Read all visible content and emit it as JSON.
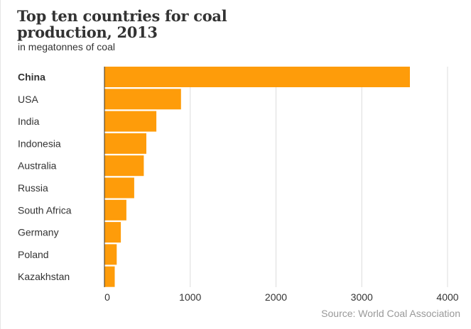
{
  "header": {
    "title": "Top ten countries for coal production, 2013",
    "subtitle": "in megatonnes of coal"
  },
  "footer": {
    "source": "Source: World Coal Association"
  },
  "colors": {
    "bar": "#fe9c0a",
    "gridline": "#dcdcdc",
    "axis": "#333333"
  },
  "chart_data": {
    "type": "bar",
    "orientation": "horizontal",
    "title": "Top ten countries for coal production, 2013",
    "subtitle": "in megatonnes of coal",
    "categories": [
      "China",
      "USA",
      "India",
      "Indonesia",
      "Australia",
      "Russia",
      "South Africa",
      "Germany",
      "Poland",
      "Kazakhstan"
    ],
    "values": [
      3561,
      893,
      605,
      489,
      459,
      347,
      256,
      191,
      143,
      120
    ],
    "highlighted_category": "China",
    "xlim": [
      0,
      4000
    ],
    "xticks": [
      0,
      1000,
      2000,
      3000,
      4000
    ],
    "xtick_labels": [
      "0",
      "1000",
      "2000",
      "3000",
      "4000"
    ],
    "grid": true,
    "source": "Source: World Coal Association"
  }
}
